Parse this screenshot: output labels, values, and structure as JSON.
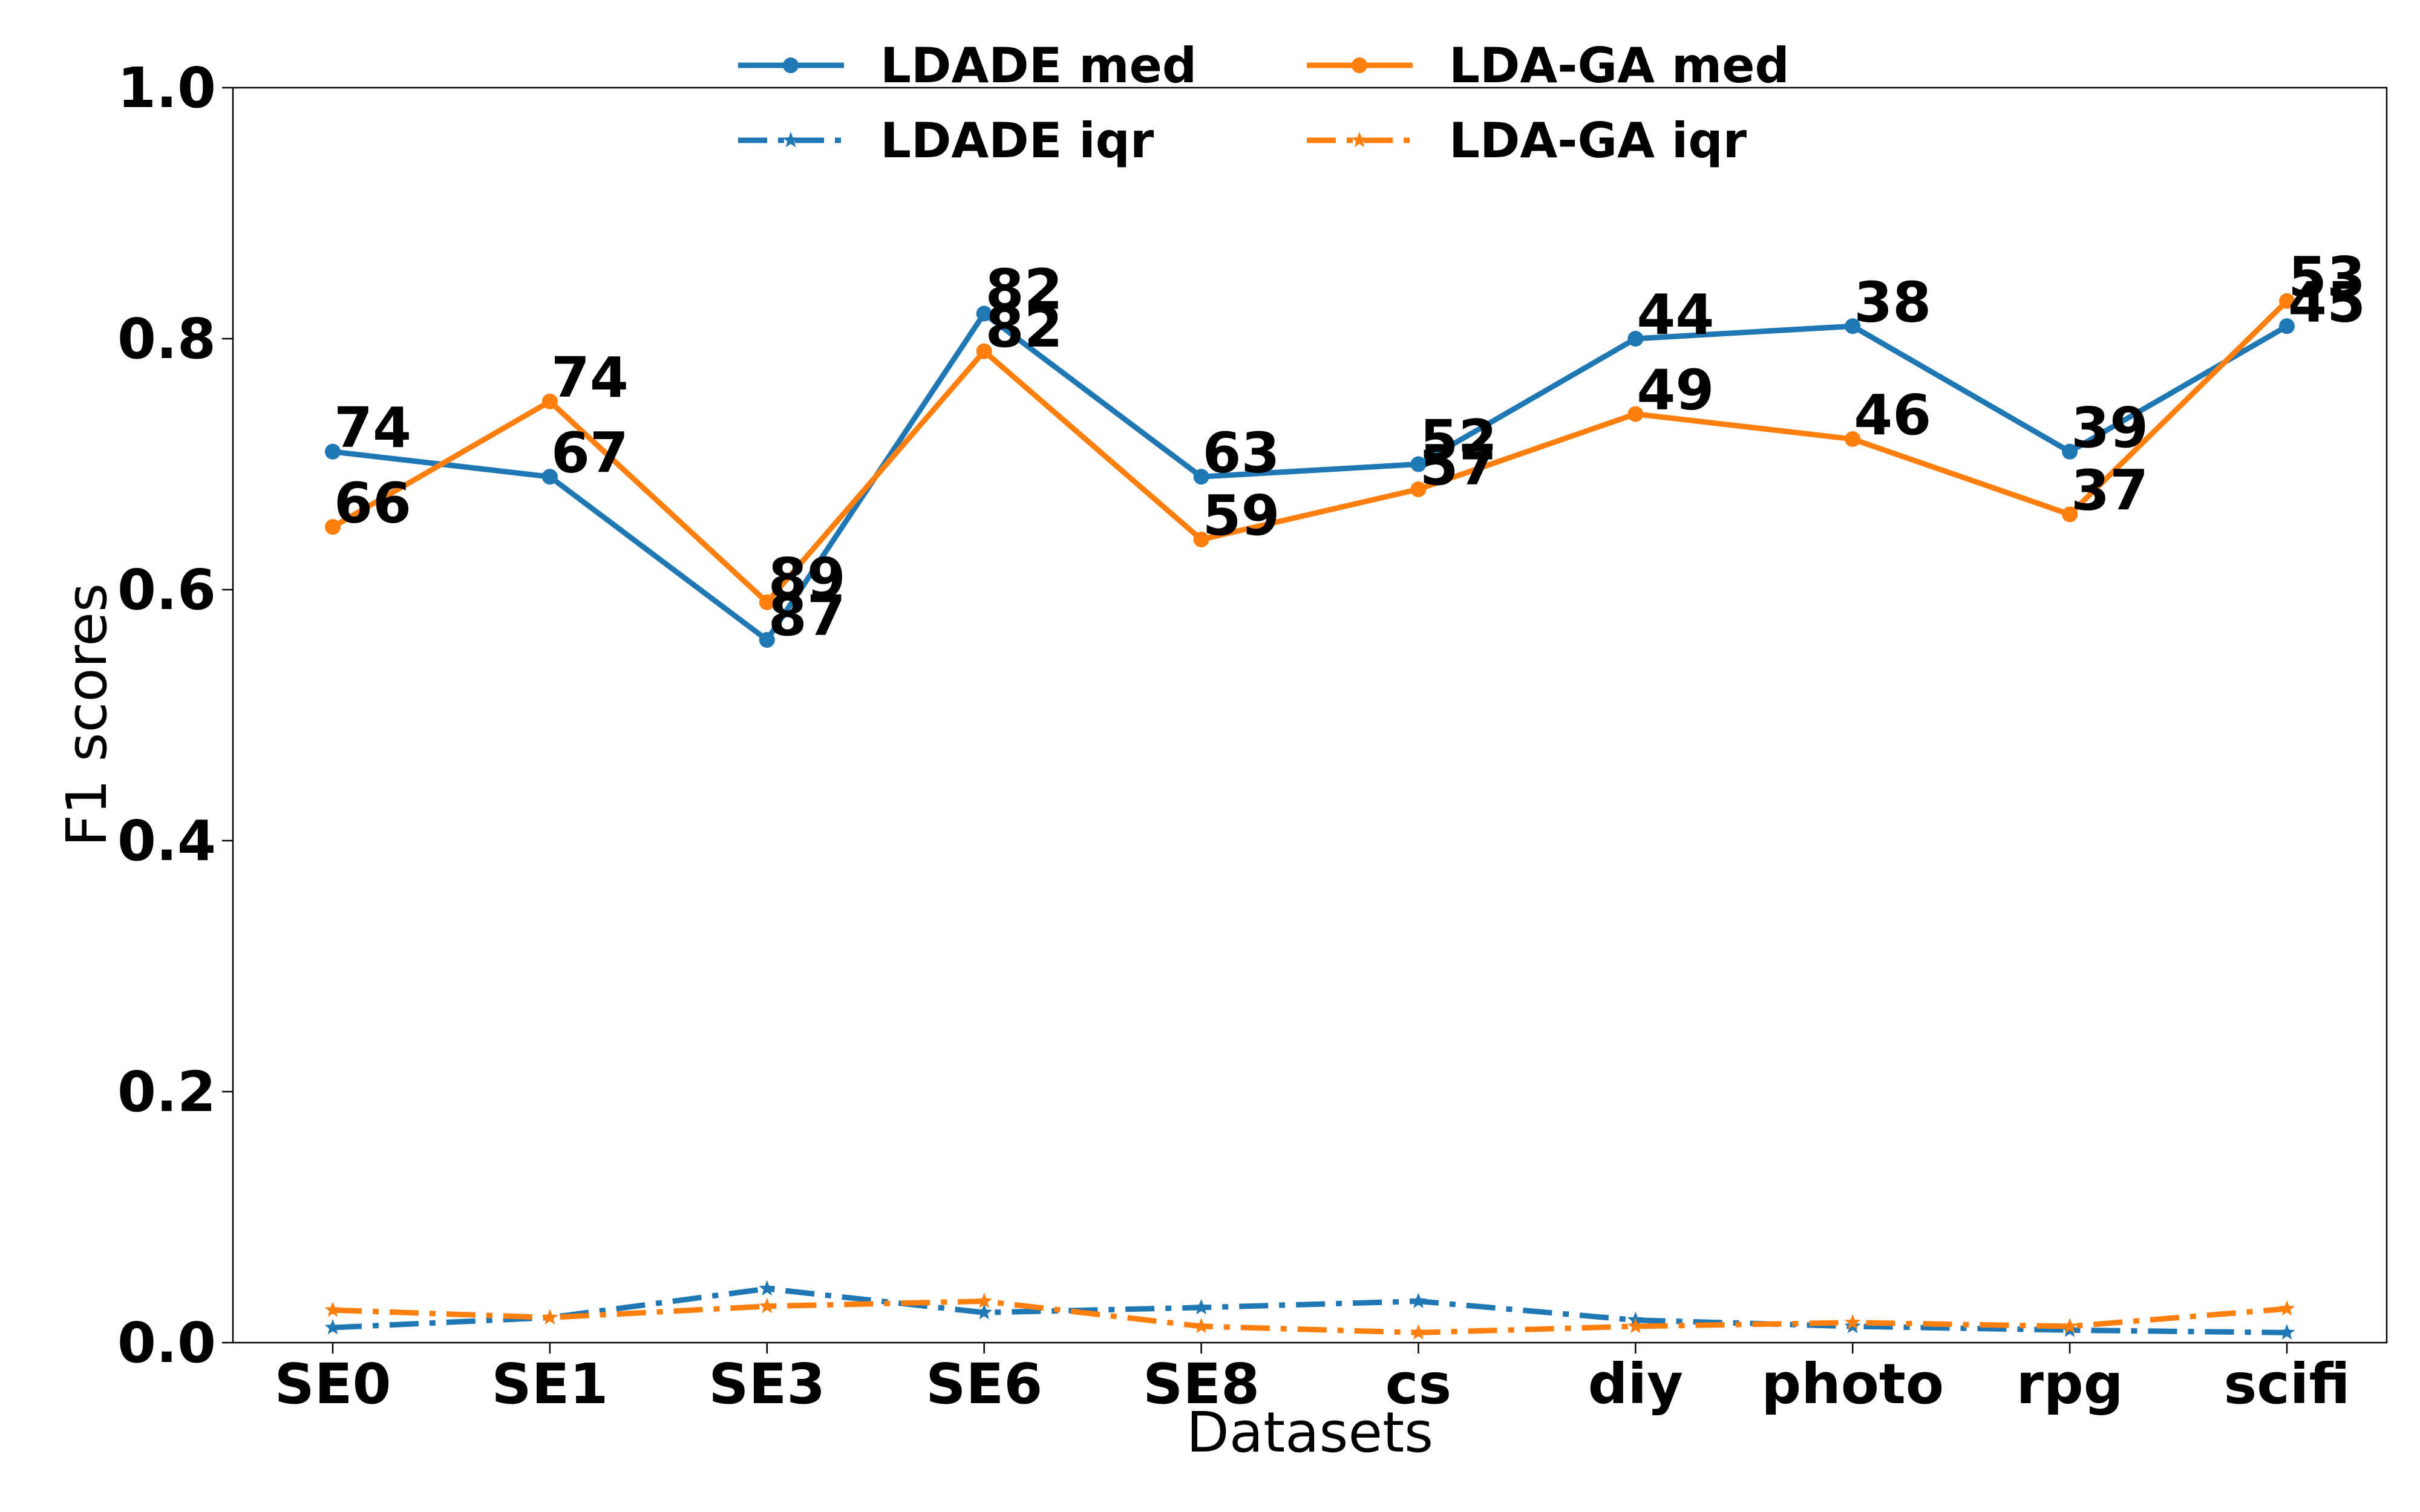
{
  "chart_data": {
    "type": "line",
    "title": "",
    "xlabel": "Datasets",
    "ylabel": "F1 scores",
    "ylim": [
      0,
      1.0
    ],
    "yticks": [
      "0.0",
      "0.2",
      "0.4",
      "0.6",
      "0.8",
      "1.0"
    ],
    "yticks_values": [
      0,
      0.2,
      0.4,
      0.6,
      0.8,
      1.0
    ],
    "categories": [
      "SE0",
      "SE1",
      "SE3",
      "SE6",
      "SE8",
      "cs",
      "diy",
      "photo",
      "rpg",
      "scifi"
    ],
    "grid": false,
    "legend_position": "top-center",
    "series": [
      {
        "name": "LDADE med",
        "color": "#1f77b4",
        "style": "solid",
        "marker": "circle",
        "values": [
          0.71,
          0.69,
          0.56,
          0.82,
          0.69,
          0.7,
          0.8,
          0.81,
          0.71,
          0.81
        ],
        "labels": [
          "74",
          "67",
          "87",
          "82",
          "63",
          "52",
          "44",
          "38",
          "39",
          "45"
        ]
      },
      {
        "name": "LDA-GA med",
        "color": "#ff7f0e",
        "style": "solid",
        "marker": "circle",
        "values": [
          0.65,
          0.75,
          0.59,
          0.79,
          0.64,
          0.68,
          0.74,
          0.72,
          0.66,
          0.83
        ],
        "labels": [
          "66",
          "74",
          "89",
          "82",
          "59",
          "57",
          "49",
          "46",
          "37",
          "53"
        ]
      },
      {
        "name": "LDADE iqr",
        "color": "#1f77b4",
        "style": "dashdot",
        "marker": "star",
        "values": [
          0.012,
          0.02,
          0.043,
          0.024,
          0.028,
          0.033,
          0.018,
          0.013,
          0.01,
          0.008
        ]
      },
      {
        "name": "LDA-GA iqr",
        "color": "#ff7f0e",
        "style": "dashdot",
        "marker": "star",
        "values": [
          0.026,
          0.02,
          0.029,
          0.033,
          0.013,
          0.008,
          0.013,
          0.016,
          0.013,
          0.027
        ]
      }
    ]
  }
}
